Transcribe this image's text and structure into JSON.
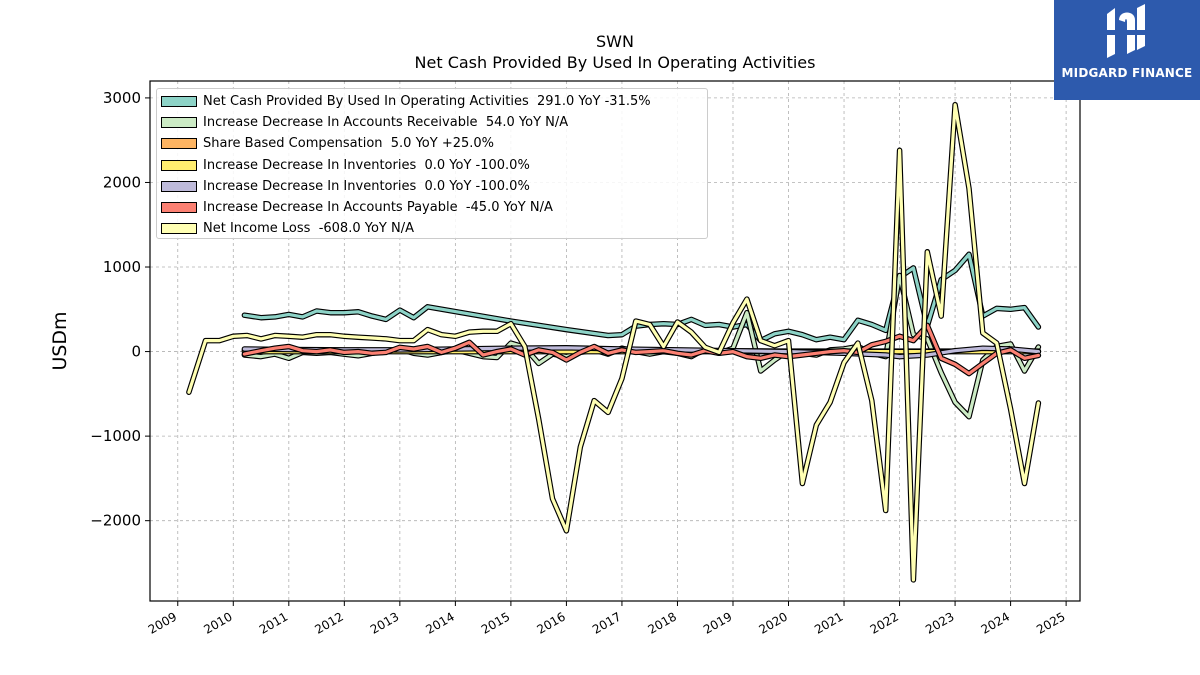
{
  "brand": {
    "name": "MIDGARD FINANCE",
    "bg_color": "#2d5aad"
  },
  "chart_data": {
    "type": "line",
    "title": "SWN",
    "subtitle": "Net Cash Provided By Used In Operating Activities",
    "xlabel": "",
    "ylabel": "USDm",
    "xlim": [
      2008.5,
      2025.25
    ],
    "ylim": [
      -2950,
      3200
    ],
    "x_ticks": [
      2009,
      2010,
      2011,
      2012,
      2013,
      2014,
      2015,
      2016,
      2017,
      2018,
      2019,
      2020,
      2021,
      2022,
      2023,
      2024,
      2025
    ],
    "y_ticks": [
      -2000,
      -1000,
      0,
      1000,
      2000,
      3000
    ],
    "y_tick_labels": [
      "−2000",
      "−1000",
      "0",
      "1000",
      "2000",
      "3000"
    ],
    "grid": true,
    "legend_position": "top-left",
    "series": [
      {
        "name": "Net Cash Provided By Used In Operating Activities  291.0 YoY -31.5%",
        "color": "#8dd3c7",
        "points": [
          [
            2010.2,
            430
          ],
          [
            2010.5,
            400
          ],
          [
            2010.75,
            410
          ],
          [
            2011.0,
            440
          ],
          [
            2011.25,
            410
          ],
          [
            2011.5,
            480
          ],
          [
            2011.75,
            460
          ],
          [
            2012.0,
            460
          ],
          [
            2012.25,
            470
          ],
          [
            2012.5,
            420
          ],
          [
            2012.75,
            380
          ],
          [
            2013.0,
            490
          ],
          [
            2013.25,
            400
          ],
          [
            2013.5,
            530
          ],
          [
            2015.0,
            360
          ],
          [
            2016.0,
            260
          ],
          [
            2016.75,
            190
          ],
          [
            2017.0,
            200
          ],
          [
            2017.25,
            300
          ],
          [
            2017.5,
            320
          ],
          [
            2017.75,
            330
          ],
          [
            2018.0,
            320
          ],
          [
            2018.25,
            380
          ],
          [
            2018.5,
            310
          ],
          [
            2018.75,
            320
          ],
          [
            2019.0,
            290
          ],
          [
            2019.25,
            320
          ],
          [
            2019.5,
            130
          ],
          [
            2019.75,
            210
          ],
          [
            2020.0,
            240
          ],
          [
            2020.25,
            200
          ],
          [
            2020.5,
            140
          ],
          [
            2020.75,
            170
          ],
          [
            2021.0,
            140
          ],
          [
            2021.25,
            370
          ],
          [
            2021.5,
            320
          ],
          [
            2021.75,
            250
          ],
          [
            2022.0,
            880
          ],
          [
            2022.25,
            990
          ],
          [
            2022.5,
            300
          ],
          [
            2022.75,
            850
          ],
          [
            2023.0,
            960
          ],
          [
            2023.25,
            1150
          ],
          [
            2023.5,
            420
          ],
          [
            2023.75,
            510
          ],
          [
            2024.0,
            500
          ],
          [
            2024.25,
            520
          ],
          [
            2024.5,
            291
          ]
        ]
      },
      {
        "name": "Increase Decrease In Accounts Receivable  54.0 YoY N/A",
        "color": "#ccebc5",
        "points": [
          [
            2010.2,
            -40
          ],
          [
            2010.5,
            -60
          ],
          [
            2010.75,
            -30
          ],
          [
            2011.0,
            -80
          ],
          [
            2011.25,
            -10
          ],
          [
            2011.5,
            -20
          ],
          [
            2011.75,
            -10
          ],
          [
            2012.0,
            -30
          ],
          [
            2012.25,
            -50
          ],
          [
            2012.5,
            -20
          ],
          [
            2012.75,
            10
          ],
          [
            2013.0,
            30
          ],
          [
            2013.25,
            -20
          ],
          [
            2013.5,
            -40
          ],
          [
            2014.0,
            20
          ],
          [
            2014.5,
            -60
          ],
          [
            2014.75,
            -70
          ],
          [
            2015.0,
            100
          ],
          [
            2015.25,
            50
          ],
          [
            2015.5,
            -140
          ],
          [
            2015.75,
            -30
          ],
          [
            2016.0,
            -60
          ],
          [
            2016.25,
            -10
          ],
          [
            2016.5,
            20
          ],
          [
            2016.75,
            -30
          ],
          [
            2017.0,
            40
          ],
          [
            2017.25,
            0
          ],
          [
            2017.5,
            -30
          ],
          [
            2017.75,
            0
          ],
          [
            2018.0,
            -20
          ],
          [
            2018.25,
            -60
          ],
          [
            2018.5,
            30
          ],
          [
            2018.75,
            -20
          ],
          [
            2019.0,
            40
          ],
          [
            2019.25,
            460
          ],
          [
            2019.5,
            -230
          ],
          [
            2019.75,
            -100
          ],
          [
            2020.0,
            10
          ],
          [
            2020.25,
            -20
          ],
          [
            2020.5,
            -40
          ],
          [
            2020.75,
            20
          ],
          [
            2021.0,
            30
          ],
          [
            2021.25,
            60
          ],
          [
            2021.5,
            -20
          ],
          [
            2021.75,
            -60
          ],
          [
            2022.0,
            900
          ],
          [
            2022.25,
            200
          ],
          [
            2022.5,
            150
          ],
          [
            2022.75,
            -250
          ],
          [
            2023.0,
            -600
          ],
          [
            2023.25,
            -770
          ],
          [
            2023.5,
            -100
          ],
          [
            2023.75,
            60
          ],
          [
            2024.0,
            90
          ],
          [
            2024.25,
            -230
          ],
          [
            2024.5,
            54
          ]
        ]
      },
      {
        "name": "Share Based Compensation  5.0 YoY +25.0%",
        "color": "#fdb462",
        "points": [
          [
            2010.2,
            15
          ],
          [
            2011.0,
            14
          ],
          [
            2012.0,
            14
          ],
          [
            2013.0,
            13
          ],
          [
            2014.0,
            12
          ],
          [
            2015.0,
            10
          ],
          [
            2016.0,
            9
          ],
          [
            2017.0,
            8
          ],
          [
            2018.0,
            7
          ],
          [
            2019.0,
            7
          ],
          [
            2020.0,
            6
          ],
          [
            2021.0,
            6
          ],
          [
            2022.0,
            6
          ],
          [
            2023.0,
            5
          ],
          [
            2024.0,
            5
          ],
          [
            2024.5,
            5
          ]
        ]
      },
      {
        "name": "Increase Decrease In Inventories  0.0 YoY -100.0%",
        "color": "#ffed6f",
        "points": [
          [
            2010.2,
            0
          ],
          [
            2012.0,
            0
          ],
          [
            2014.0,
            0
          ],
          [
            2016.0,
            0
          ],
          [
            2018.0,
            0
          ],
          [
            2020.0,
            0
          ],
          [
            2022.0,
            0
          ],
          [
            2024.5,
            0
          ]
        ]
      },
      {
        "name": "Increase Decrease In Inventories  0.0 YoY -100.0%",
        "color": "#bebada",
        "points": [
          [
            2010.2,
            30
          ],
          [
            2011.0,
            25
          ],
          [
            2012.0,
            20
          ],
          [
            2013.0,
            20
          ],
          [
            2014.0,
            30
          ],
          [
            2015.0,
            40
          ],
          [
            2016.0,
            45
          ],
          [
            2017.0,
            30
          ],
          [
            2018.0,
            20
          ],
          [
            2019.0,
            10
          ],
          [
            2020.0,
            0
          ],
          [
            2021.0,
            -20
          ],
          [
            2021.75,
            -40
          ],
          [
            2022.0,
            -60
          ],
          [
            2022.5,
            -40
          ],
          [
            2023.0,
            10
          ],
          [
            2023.5,
            40
          ],
          [
            2024.0,
            30
          ],
          [
            2024.5,
            0
          ]
        ]
      },
      {
        "name": "Increase Decrease In Accounts Payable  -45.0 YoY N/A",
        "color": "#fb8072",
        "points": [
          [
            2010.2,
            -30
          ],
          [
            2010.5,
            10
          ],
          [
            2010.75,
            40
          ],
          [
            2011.0,
            60
          ],
          [
            2011.25,
            10
          ],
          [
            2011.5,
            0
          ],
          [
            2011.75,
            20
          ],
          [
            2012.0,
            -10
          ],
          [
            2012.25,
            0
          ],
          [
            2012.5,
            -20
          ],
          [
            2012.75,
            -10
          ],
          [
            2013.0,
            50
          ],
          [
            2013.25,
            30
          ],
          [
            2013.5,
            60
          ],
          [
            2013.75,
            -10
          ],
          [
            2014.0,
            40
          ],
          [
            2014.25,
            110
          ],
          [
            2014.5,
            -40
          ],
          [
            2014.75,
            0
          ],
          [
            2015.0,
            30
          ],
          [
            2015.25,
            -40
          ],
          [
            2015.5,
            20
          ],
          [
            2015.75,
            -10
          ],
          [
            2016.0,
            -100
          ],
          [
            2016.25,
            -10
          ],
          [
            2016.5,
            60
          ],
          [
            2016.75,
            -20
          ],
          [
            2017.0,
            20
          ],
          [
            2017.25,
            -10
          ],
          [
            2017.5,
            0
          ],
          [
            2017.75,
            10
          ],
          [
            2018.0,
            -20
          ],
          [
            2018.25,
            -40
          ],
          [
            2018.5,
            10
          ],
          [
            2018.75,
            -20
          ],
          [
            2019.0,
            0
          ],
          [
            2019.25,
            -60
          ],
          [
            2019.5,
            -80
          ],
          [
            2019.75,
            -40
          ],
          [
            2020.0,
            -60
          ],
          [
            2020.25,
            -40
          ],
          [
            2020.5,
            -20
          ],
          [
            2020.75,
            0
          ],
          [
            2021.0,
            10
          ],
          [
            2021.25,
            -10
          ],
          [
            2021.5,
            80
          ],
          [
            2021.75,
            120
          ],
          [
            2022.0,
            180
          ],
          [
            2022.25,
            130
          ],
          [
            2022.5,
            310
          ],
          [
            2022.75,
            -80
          ],
          [
            2023.0,
            -150
          ],
          [
            2023.25,
            -260
          ],
          [
            2023.5,
            -140
          ],
          [
            2023.75,
            -20
          ],
          [
            2024.0,
            20
          ],
          [
            2024.25,
            -80
          ],
          [
            2024.5,
            -45
          ]
        ]
      },
      {
        "name": "Net Income Loss  -608.0 YoY N/A",
        "color": "#ffffb3",
        "points": [
          [
            2009.2,
            -480
          ],
          [
            2009.5,
            130
          ],
          [
            2009.75,
            130
          ],
          [
            2010.0,
            180
          ],
          [
            2010.25,
            190
          ],
          [
            2010.5,
            150
          ],
          [
            2010.75,
            190
          ],
          [
            2011.0,
            180
          ],
          [
            2011.25,
            170
          ],
          [
            2011.5,
            200
          ],
          [
            2011.75,
            200
          ],
          [
            2012.0,
            180
          ],
          [
            2012.25,
            170
          ],
          [
            2012.5,
            160
          ],
          [
            2012.75,
            150
          ],
          [
            2013.0,
            130
          ],
          [
            2013.25,
            130
          ],
          [
            2013.5,
            260
          ],
          [
            2013.75,
            200
          ],
          [
            2014.0,
            180
          ],
          [
            2014.25,
            230
          ],
          [
            2014.5,
            240
          ],
          [
            2014.75,
            240
          ],
          [
            2015.0,
            330
          ],
          [
            2015.25,
            60
          ],
          [
            2015.5,
            -800
          ],
          [
            2015.75,
            -1740
          ],
          [
            2016.0,
            -2120
          ],
          [
            2016.25,
            -1130
          ],
          [
            2016.5,
            -580
          ],
          [
            2016.75,
            -720
          ],
          [
            2017.0,
            -320
          ],
          [
            2017.25,
            360
          ],
          [
            2017.5,
            320
          ],
          [
            2017.75,
            60
          ],
          [
            2018.0,
            350
          ],
          [
            2018.25,
            230
          ],
          [
            2018.5,
            50
          ],
          [
            2018.75,
            -10
          ],
          [
            2019.0,
            340
          ],
          [
            2019.25,
            620
          ],
          [
            2019.5,
            130
          ],
          [
            2019.75,
            70
          ],
          [
            2020.0,
            130
          ],
          [
            2020.25,
            -1560
          ],
          [
            2020.5,
            -870
          ],
          [
            2020.75,
            -600
          ],
          [
            2021.0,
            -130
          ],
          [
            2021.25,
            100
          ],
          [
            2021.5,
            -580
          ],
          [
            2021.75,
            -1880
          ],
          [
            2022.0,
            2380
          ],
          [
            2022.25,
            -2700
          ],
          [
            2022.5,
            1180
          ],
          [
            2022.75,
            420
          ],
          [
            2023.0,
            2920
          ],
          [
            2023.25,
            1930
          ],
          [
            2023.5,
            220
          ],
          [
            2023.75,
            100
          ],
          [
            2024.0,
            -680
          ],
          [
            2024.25,
            -1560
          ],
          [
            2024.5,
            -608
          ]
        ]
      }
    ]
  }
}
